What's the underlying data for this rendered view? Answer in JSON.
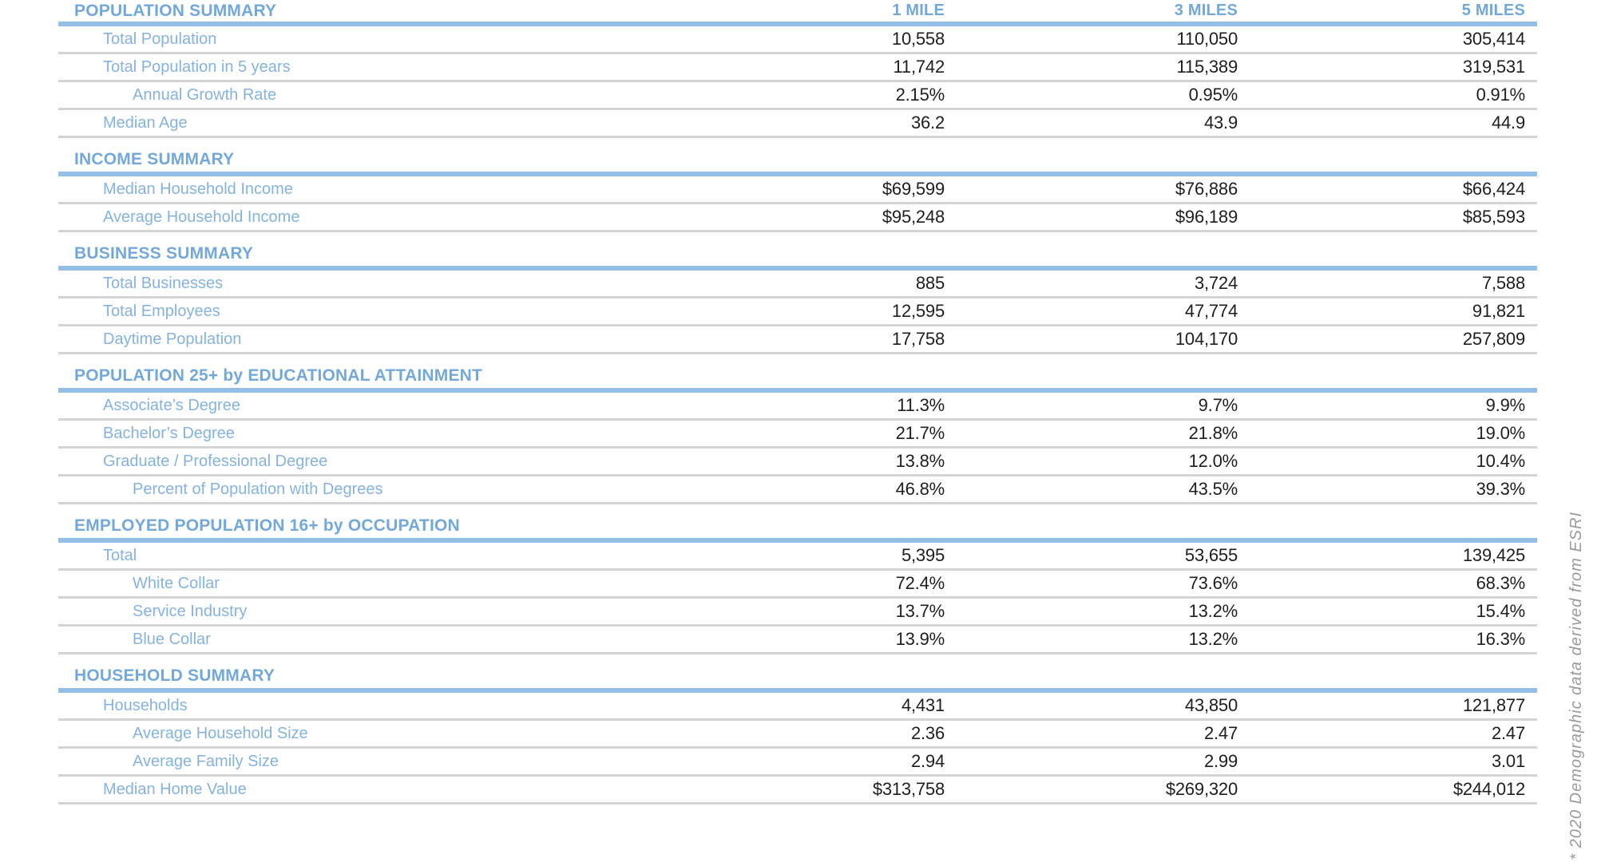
{
  "columns": [
    "1 MILE",
    "3 MILES",
    "5 MILES"
  ],
  "footnote": "* 2020 Demographic data derived from ESRI",
  "colors": {
    "header_blue": "#73a8da",
    "label_blue": "#85b3df",
    "rule_blue": "#93bfe6",
    "rule_gray": "#d4d4d4",
    "value_color": "#1e1e1e",
    "footnote_gray": "#9b9b9b"
  },
  "sections": [
    {
      "title": "POPULATION SUMMARY",
      "rows": [
        {
          "label": "Total Population",
          "indent": 1,
          "values": [
            "10,558",
            "110,050",
            "305,414"
          ]
        },
        {
          "label": "Total Population in 5 years",
          "indent": 1,
          "values": [
            "11,742",
            "115,389",
            "319,531"
          ]
        },
        {
          "label": "Annual Growth Rate",
          "indent": 2,
          "values": [
            "2.15%",
            "0.95%",
            "0.91%"
          ]
        },
        {
          "label": "Median Age",
          "indent": 1,
          "values": [
            "36.2",
            "43.9",
            "44.9"
          ]
        }
      ]
    },
    {
      "title": "INCOME SUMMARY",
      "rows": [
        {
          "label": "Median Household Income",
          "indent": 1,
          "values": [
            "$69,599",
            "$76,886",
            "$66,424"
          ]
        },
        {
          "label": "Average Household Income",
          "indent": 1,
          "values": [
            "$95,248",
            "$96,189",
            "$85,593"
          ]
        }
      ]
    },
    {
      "title": "BUSINESS SUMMARY",
      "rows": [
        {
          "label": "Total Businesses",
          "indent": 1,
          "values": [
            "885",
            "3,724",
            "7,588"
          ]
        },
        {
          "label": "Total Employees",
          "indent": 1,
          "values": [
            "12,595",
            "47,774",
            "91,821"
          ]
        },
        {
          "label": "Daytime Population",
          "indent": 1,
          "values": [
            "17,758",
            "104,170",
            "257,809"
          ]
        }
      ]
    },
    {
      "title": "POPULATION 25+ by EDUCATIONAL ATTAINMENT",
      "rows": [
        {
          "label": "Associate’s Degree",
          "indent": 1,
          "values": [
            "11.3%",
            "9.7%",
            "9.9%"
          ]
        },
        {
          "label": "Bachelor’s Degree",
          "indent": 1,
          "values": [
            "21.7%",
            "21.8%",
            "19.0%"
          ]
        },
        {
          "label": "Graduate / Professional Degree",
          "indent": 1,
          "values": [
            "13.8%",
            "12.0%",
            "10.4%"
          ]
        },
        {
          "label": "Percent of Population with Degrees",
          "indent": 2,
          "values": [
            "46.8%",
            "43.5%",
            "39.3%"
          ]
        }
      ]
    },
    {
      "title": "EMPLOYED POPULATION 16+ by OCCUPATION",
      "rows": [
        {
          "label": "Total",
          "indent": 1,
          "values": [
            "5,395",
            "53,655",
            "139,425"
          ]
        },
        {
          "label": "White Collar",
          "indent": 2,
          "values": [
            "72.4%",
            "73.6%",
            "68.3%"
          ]
        },
        {
          "label": "Service Industry",
          "indent": 2,
          "values": [
            "13.7%",
            "13.2%",
            "15.4%"
          ]
        },
        {
          "label": "Blue Collar",
          "indent": 2,
          "values": [
            "13.9%",
            "13.2%",
            "16.3%"
          ]
        }
      ]
    },
    {
      "title": "HOUSEHOLD SUMMARY",
      "rows": [
        {
          "label": "Households",
          "indent": 1,
          "values": [
            "4,431",
            "43,850",
            "121,877"
          ]
        },
        {
          "label": "Average Household Size",
          "indent": 2,
          "values": [
            "2.36",
            "2.47",
            "2.47"
          ]
        },
        {
          "label": "Average Family Size",
          "indent": 2,
          "values": [
            "2.94",
            "2.99",
            "3.01"
          ]
        },
        {
          "label": "Median Home Value",
          "indent": 1,
          "values": [
            "$313,758",
            "$269,320",
            "$244,012"
          ]
        }
      ]
    }
  ]
}
